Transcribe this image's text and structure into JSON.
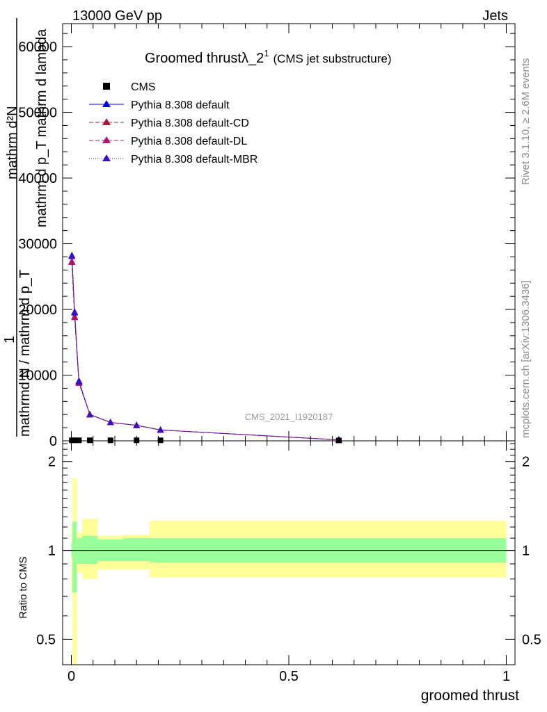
{
  "header": {
    "left": "13000 GeV pp",
    "right": "Jets"
  },
  "side_labels": {
    "rivet": "Rivet 3.1.10, ≥ 2.6M events",
    "mcplots": "mcplots.cern.ch [arXiv:1306.3436]"
  },
  "watermark": "CMS_2021_I1920187",
  "chart_data": [
    {
      "type": "line",
      "title": "Groomed thrustλ_2",
      "title_sup": "1",
      "subtitle": "(CMS jet substructure)",
      "xlabel": "groomed thrust",
      "ylabel_top": "mathrm d²N",
      "ylabel_bottom": "mathrm d p_T mathrm d lambda",
      "ylabel_left_top": "1",
      "ylabel_left_bottom": "mathrmd N / mathrm d p_T",
      "xlim": [
        -0.02,
        1.02
      ],
      "ylim": [
        0,
        63500
      ],
      "yticks": [
        0,
        10000,
        20000,
        30000,
        40000,
        50000,
        60000
      ],
      "ytick_labels": [
        "0",
        "10000",
        "20000",
        "30000",
        "40000",
        "50000",
        "60000"
      ],
      "legend_position": "top-left",
      "series": [
        {
          "name": "CMS",
          "color": "#000000",
          "marker": "square",
          "x": [
            0.0012,
            0.0075,
            0.0175,
            0.0425,
            0.09,
            0.15,
            0.205,
            0.615
          ],
          "y": [
            80,
            80,
            80,
            80,
            80,
            80,
            80,
            60
          ]
        },
        {
          "name": "Pythia 8.308 default",
          "color": "#0000dd",
          "dash": "solid",
          "marker": "triangle",
          "x": [
            0.0012,
            0.0075,
            0.0175,
            0.0425,
            0.09,
            0.15,
            0.205,
            0.615
          ],
          "y": [
            28200,
            19600,
            9100,
            4000,
            2800,
            2350,
            1650,
            150
          ]
        },
        {
          "name": "Pythia 8.308 default-CD",
          "color": "#a0183a",
          "dash": "6,3",
          "marker": "triangle",
          "x": [
            0.0012,
            0.0075,
            0.0175,
            0.0425,
            0.09,
            0.15,
            0.205,
            0.615
          ],
          "y": [
            27300,
            18900,
            8900,
            4000,
            2800,
            2350,
            1650,
            150
          ]
        },
        {
          "name": "Pythia 8.308 default-DL",
          "color": "#b0146e",
          "dash": "6,3",
          "marker": "triangle",
          "x": [
            0.0012,
            0.0075,
            0.0175,
            0.0425,
            0.09,
            0.15,
            0.205,
            0.615
          ],
          "y": [
            27200,
            18800,
            8800,
            4000,
            2800,
            2350,
            1650,
            150
          ]
        },
        {
          "name": "Pythia 8.308 default-MBR",
          "color": "#3a10c0",
          "dash": "1,2",
          "marker": "triangle",
          "x": [
            0.0012,
            0.0075,
            0.0175,
            0.0425,
            0.09,
            0.15,
            0.205,
            0.615
          ],
          "y": [
            28100,
            19500,
            9000,
            4000,
            2800,
            2350,
            1650,
            150
          ]
        }
      ]
    },
    {
      "type": "area",
      "ylabel": "Ratio to CMS",
      "xlabel": "groomed thrust",
      "xlim": [
        -0.02,
        1.02
      ],
      "ylim": [
        0.41,
        2.35
      ],
      "log_scale": true,
      "xticks": [
        0,
        0.5,
        1
      ],
      "xtick_labels": [
        "0",
        "0.5",
        "1"
      ],
      "yticks": [
        0.5,
        1,
        2
      ],
      "ytick_labels": [
        "0.5",
        "1",
        "2"
      ],
      "reference_line": 1,
      "bands": [
        {
          "x0": 0.0,
          "x1": 0.0025,
          "stat": [
            0.95,
            1.06
          ],
          "total": [
            0.72,
            1.22
          ]
        },
        {
          "x0": 0.0025,
          "x1": 0.0125,
          "stat": [
            0.72,
            1.25
          ],
          "total": [
            0.35,
            1.75
          ]
        },
        {
          "x0": 0.0125,
          "x1": 0.025,
          "stat": [
            0.9,
            1.1
          ],
          "total": [
            0.84,
            1.15
          ]
        },
        {
          "x0": 0.025,
          "x1": 0.06,
          "stat": [
            0.9,
            1.12
          ],
          "total": [
            0.8,
            1.28
          ]
        },
        {
          "x0": 0.06,
          "x1": 0.12,
          "stat": [
            0.92,
            1.09
          ],
          "total": [
            0.86,
            1.12
          ]
        },
        {
          "x0": 0.12,
          "x1": 0.18,
          "stat": [
            0.92,
            1.1
          ],
          "total": [
            0.86,
            1.13
          ]
        },
        {
          "x0": 0.18,
          "x1": 1.0,
          "stat": [
            0.91,
            1.1
          ],
          "total": [
            0.81,
            1.26
          ]
        }
      ],
      "band_colors": {
        "stat": "#99ff99",
        "total": "#ffff99"
      }
    }
  ]
}
